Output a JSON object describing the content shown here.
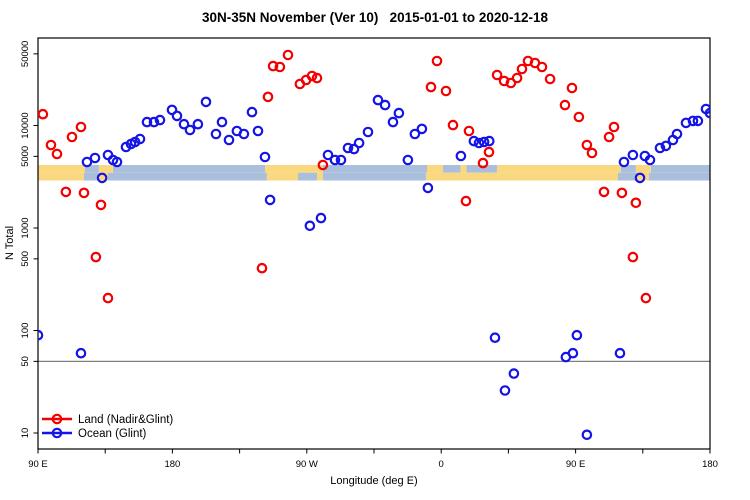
{
  "title": "30N-35N November (Ver 10)   2015-01-01 to 2020-12-18",
  "x_axis": {
    "title": "Longitude (deg E)",
    "range_deg": [
      0,
      450
    ],
    "minor_tick_step_deg": 45,
    "ticks": [
      {
        "deg": 0,
        "label": "90 E"
      },
      {
        "deg": 90,
        "label": "180"
      },
      {
        "deg": 180,
        "label": "90 W"
      },
      {
        "deg": 270,
        "label": "0"
      },
      {
        "deg": 360,
        "label": "90 E"
      },
      {
        "deg": 450,
        "label": "180"
      }
    ]
  },
  "y_axis": {
    "title": "N Total",
    "scale": "log10",
    "ticks": [
      10,
      50,
      100,
      500,
      1000,
      5000,
      10000,
      50000
    ],
    "tick_labels": [
      "10",
      "50",
      "100",
      "500",
      "1000",
      "5000",
      "10000",
      "50000"
    ]
  },
  "reference_line": {
    "value": 50,
    "color": "#808080"
  },
  "legend": {
    "position": "bottom-left",
    "items": [
      {
        "label": "Land (Nadir&Glint)",
        "color": "#F40000"
      },
      {
        "label": "Ocean (Glint)",
        "color": "#1414E6"
      }
    ]
  },
  "map_strip": {
    "description": "coastline band showing land/ocean along 30N-35N",
    "land_color": "#FAD87F",
    "ocean_color": "#A9BFDB",
    "rows": [
      {
        "name": "north-half",
        "segments": [
          [
            0,
            31.5,
            "land"
          ],
          [
            31.5,
            40.8,
            "ocean"
          ],
          [
            40.8,
            50.2,
            "land"
          ],
          [
            50.2,
            152,
            "ocean"
          ],
          [
            152,
            190.8,
            "land"
          ],
          [
            190.8,
            260.5,
            "ocean"
          ],
          [
            260.5,
            271.2,
            "land"
          ],
          [
            271.2,
            283,
            "ocean"
          ],
          [
            283,
            287,
            "land"
          ],
          [
            287,
            307.4,
            "ocean"
          ],
          [
            307.4,
            390.4,
            "land"
          ],
          [
            390.4,
            400.4,
            "ocean"
          ],
          [
            400.4,
            410.4,
            "land"
          ],
          [
            410.4,
            450,
            "ocean"
          ]
        ]
      },
      {
        "name": "south-half",
        "segments": [
          [
            0,
            30.8,
            "land"
          ],
          [
            30.8,
            40.8,
            "ocean"
          ],
          [
            40.8,
            46.9,
            "land"
          ],
          [
            46.9,
            153.3,
            "ocean"
          ],
          [
            153.3,
            174.1,
            "land"
          ],
          [
            174.1,
            186.8,
            "ocean"
          ],
          [
            186.8,
            190.8,
            "land"
          ],
          [
            190.8,
            259.8,
            "ocean"
          ],
          [
            259.8,
            388.4,
            "land"
          ],
          [
            388.4,
            401.1,
            "ocean"
          ],
          [
            401.1,
            409.1,
            "land"
          ],
          [
            409.1,
            450,
            "ocean"
          ]
        ]
      }
    ]
  },
  "chart_data": {
    "type": "scatter",
    "title": "30N-35N November (Ver 10)   2015-01-01 to 2020-12-18",
    "xlabel": "Longitude (deg E)",
    "ylabel": "N Total",
    "x_unit": "degrees east of 90E; axis wraps 90E → 180 → 90W → 0 → 90E → 180 (450 deg total)",
    "xlim_deg": [
      0,
      450
    ],
    "ylim": [
      7,
      70000
    ],
    "y_scale": "log10",
    "grid": "single horizontal gray reference line at N=50",
    "legend_position": "bottom-left",
    "series": [
      {
        "name": "Land (Nadir&Glint)",
        "color": "#F40000",
        "marker": "open-circle",
        "points": [
          [
            3.3,
            12900
          ],
          [
            8.7,
            6450
          ],
          [
            12.7,
            5270
          ],
          [
            18.7,
            2250
          ],
          [
            22.8,
            7720
          ],
          [
            28.8,
            9670
          ],
          [
            30.8,
            2200
          ],
          [
            38.8,
            520
          ],
          [
            42.2,
            1680
          ],
          [
            46.9,
            207
          ],
          [
            150.0,
            405
          ],
          [
            154.0,
            19000
          ],
          [
            157.4,
            38000
          ],
          [
            162.0,
            37200
          ],
          [
            167.4,
            48700
          ],
          [
            175.4,
            25400
          ],
          [
            179.5,
            27800
          ],
          [
            183.5,
            30400
          ],
          [
            186.8,
            29000
          ],
          [
            190.8,
            4120
          ],
          [
            263.2,
            23700
          ],
          [
            267.2,
            42600
          ],
          [
            273.2,
            21700
          ],
          [
            277.9,
            10100
          ],
          [
            286.6,
            1830
          ],
          [
            288.6,
            8840
          ],
          [
            298.0,
            4300
          ],
          [
            302.0,
            5500
          ],
          [
            307.4,
            31100
          ],
          [
            312.1,
            27200
          ],
          [
            316.7,
            26000
          ],
          [
            320.8,
            29100
          ],
          [
            324.1,
            35600
          ],
          [
            328.1,
            42600
          ],
          [
            332.8,
            40700
          ],
          [
            337.5,
            37200
          ],
          [
            342.9,
            28400
          ],
          [
            352.9,
            15800
          ],
          [
            357.6,
            23200
          ],
          [
            362.2,
            12100
          ],
          [
            367.6,
            6450
          ],
          [
            371.0,
            5390
          ],
          [
            379.0,
            2250
          ],
          [
            382.4,
            7720
          ],
          [
            385.7,
            9670
          ],
          [
            391.0,
            2200
          ],
          [
            398.4,
            520
          ],
          [
            400.4,
            1760
          ],
          [
            407.1,
            207
          ]
        ]
      },
      {
        "name": "Ocean (Glint)",
        "color": "#1414E6",
        "marker": "open-circle",
        "points": [
          [
            0,
            90
          ],
          [
            28.8,
            60
          ],
          [
            32.8,
            4400
          ],
          [
            38.2,
            4820
          ],
          [
            42.9,
            3080
          ],
          [
            46.9,
            5160
          ],
          [
            50.2,
            4610
          ],
          [
            52.9,
            4400
          ],
          [
            58.9,
            6170
          ],
          [
            62.3,
            6600
          ],
          [
            65.0,
            6900
          ],
          [
            68.3,
            7380
          ],
          [
            73.0,
            10800
          ],
          [
            77.7,
            10800
          ],
          [
            81.7,
            11300
          ],
          [
            89.7,
            14200
          ],
          [
            93.1,
            12400
          ],
          [
            97.8,
            10300
          ],
          [
            101.8,
            9040
          ],
          [
            107.1,
            10300
          ],
          [
            112.5,
            17000
          ],
          [
            119.2,
            8260
          ],
          [
            123.2,
            10800
          ],
          [
            127.9,
            7220
          ],
          [
            133.2,
            8840
          ],
          [
            137.9,
            8260
          ],
          [
            143.3,
            13500
          ],
          [
            147.3,
            8840
          ],
          [
            152.0,
            4930
          ],
          [
            155.4,
            1880
          ],
          [
            182.1,
            1050
          ],
          [
            189.5,
            1250
          ],
          [
            194.2,
            5160
          ],
          [
            198.9,
            4610
          ],
          [
            202.9,
            4610
          ],
          [
            207.6,
            6030
          ],
          [
            211.6,
            5890
          ],
          [
            215.0,
            6750
          ],
          [
            221.0,
            8640
          ],
          [
            227.7,
            17700
          ],
          [
            232.4,
            15800
          ],
          [
            237.7,
            10800
          ],
          [
            241.7,
            13200
          ],
          [
            247.7,
            4610
          ],
          [
            252.4,
            8260
          ],
          [
            257.1,
            9260
          ],
          [
            261.1,
            2460
          ],
          [
            283.2,
            5040
          ],
          [
            291.9,
            7050
          ],
          [
            295.3,
            6750
          ],
          [
            298.7,
            6900
          ],
          [
            302.2,
            7050
          ],
          [
            306.0,
            85
          ],
          [
            312.7,
            26
          ],
          [
            318.7,
            38
          ],
          [
            353.5,
            55
          ],
          [
            358.2,
            60
          ],
          [
            360.9,
            90
          ],
          [
            367.6,
            9.6
          ],
          [
            389.7,
            60
          ],
          [
            392.4,
            4400
          ],
          [
            398.4,
            5160
          ],
          [
            403.1,
            3080
          ],
          [
            406.4,
            5040
          ],
          [
            409.8,
            4610
          ],
          [
            416.5,
            6030
          ],
          [
            420.5,
            6320
          ],
          [
            425.2,
            7220
          ],
          [
            427.9,
            8260
          ],
          [
            433.9,
            10600
          ],
          [
            438.6,
            11100
          ],
          [
            441.9,
            11100
          ],
          [
            447.3,
            14500
          ],
          [
            450.0,
            13200
          ]
        ]
      }
    ]
  }
}
